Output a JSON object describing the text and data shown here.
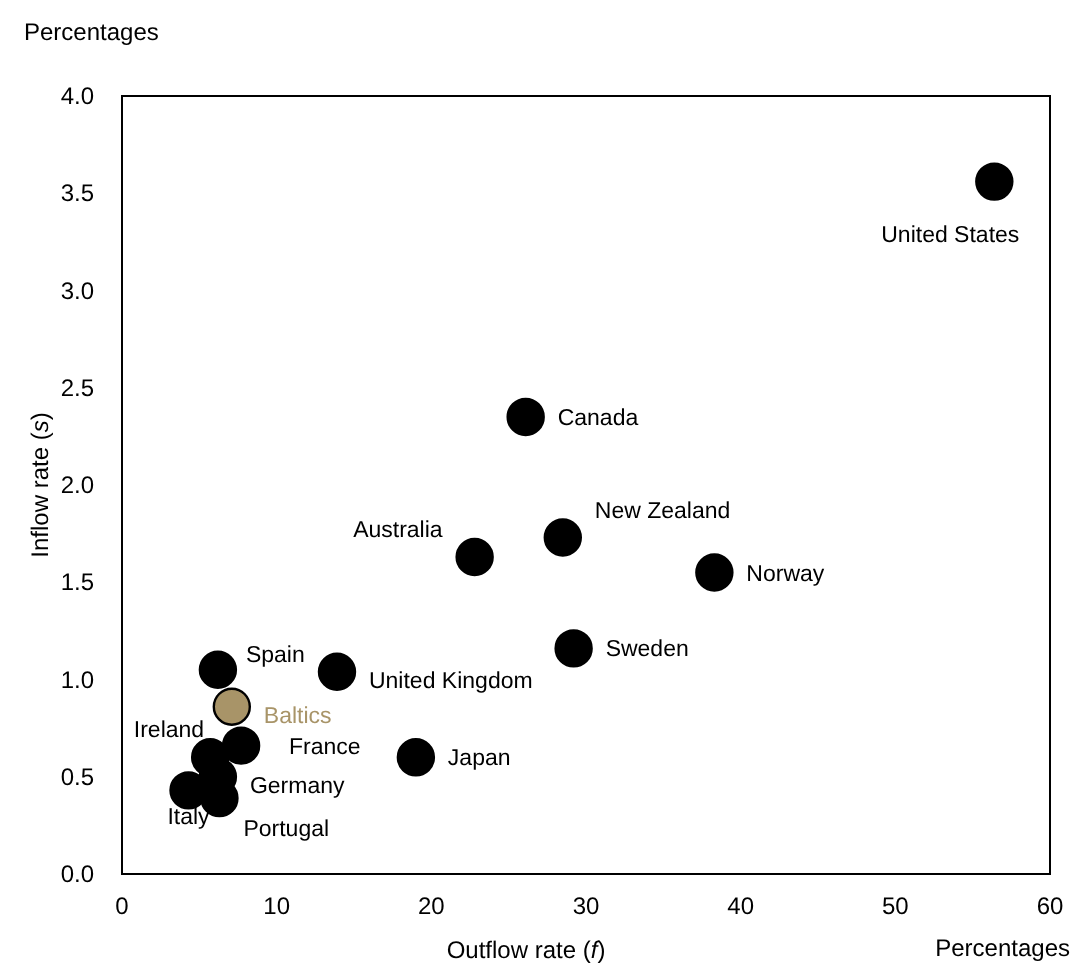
{
  "chart_data": {
    "type": "scatter",
    "xlabel": "Outflow rate (f)",
    "ylabel": "Inflow rate (s)",
    "annotations": [
      "Percentages",
      "Percentages"
    ],
    "xlim": [
      0,
      60
    ],
    "xticks": [
      0,
      10,
      20,
      30,
      40,
      50,
      60
    ],
    "ylim": [
      0,
      4
    ],
    "yticks": [
      {
        "value": 0,
        "label": "0.0"
      },
      {
        "value": 0.5,
        "label": "0.5"
      },
      {
        "value": 1,
        "label": "1.0"
      },
      {
        "value": 1.5,
        "label": "1.5"
      },
      {
        "value": 2,
        "label": "2.0"
      },
      {
        "value": 2.5,
        "label": "2.5"
      },
      {
        "value": 3,
        "label": "3.0"
      },
      {
        "value": 3.5,
        "label": "3.5"
      },
      {
        "value": 4,
        "label": "4.0"
      }
    ],
    "grid": false,
    "marker": "circle",
    "legend": false,
    "series": [
      {
        "name": "United States",
        "color": "#000000",
        "x": [
          56.4
        ],
        "values": [
          3.56
        ]
      },
      {
        "name": "Canada",
        "color": "#000000",
        "x": [
          26.1
        ],
        "values": [
          2.35
        ]
      },
      {
        "name": "New Zealand",
        "color": "#000000",
        "x": [
          28.5
        ],
        "values": [
          1.73
        ]
      },
      {
        "name": "Australia",
        "color": "#000000",
        "x": [
          22.8
        ],
        "values": [
          1.63
        ]
      },
      {
        "name": "Norway",
        "color": "#000000",
        "x": [
          38.3
        ],
        "values": [
          1.55
        ]
      },
      {
        "name": "Sweden",
        "color": "#000000",
        "x": [
          29.2
        ],
        "values": [
          1.16
        ]
      },
      {
        "name": "United Kingdom",
        "color": "#000000",
        "x": [
          13.9
        ],
        "values": [
          1.04
        ]
      },
      {
        "name": "Spain",
        "color": "#000000",
        "x": [
          6.2
        ],
        "values": [
          1.05
        ]
      },
      {
        "name": "Japan",
        "color": "#000000",
        "x": [
          19.0
        ],
        "values": [
          0.6
        ]
      },
      {
        "name": "Ireland",
        "color": "#000000",
        "x": [
          5.7
        ],
        "values": [
          0.6
        ]
      },
      {
        "name": "France",
        "color": "#000000",
        "x": [
          7.7
        ],
        "values": [
          0.66
        ]
      },
      {
        "name": "Germany",
        "color": "#000000",
        "x": [
          6.2
        ],
        "values": [
          0.5
        ]
      },
      {
        "name": "Italy",
        "color": "#000000",
        "x": [
          4.3
        ],
        "values": [
          0.43
        ]
      },
      {
        "name": "Portugal",
        "color": "#000000",
        "x": [
          6.3
        ],
        "values": [
          0.39
        ]
      },
      {
        "name": "Baltics",
        "color": "#a89468",
        "x": [
          7.1
        ],
        "values": [
          0.86
        ]
      }
    ]
  }
}
